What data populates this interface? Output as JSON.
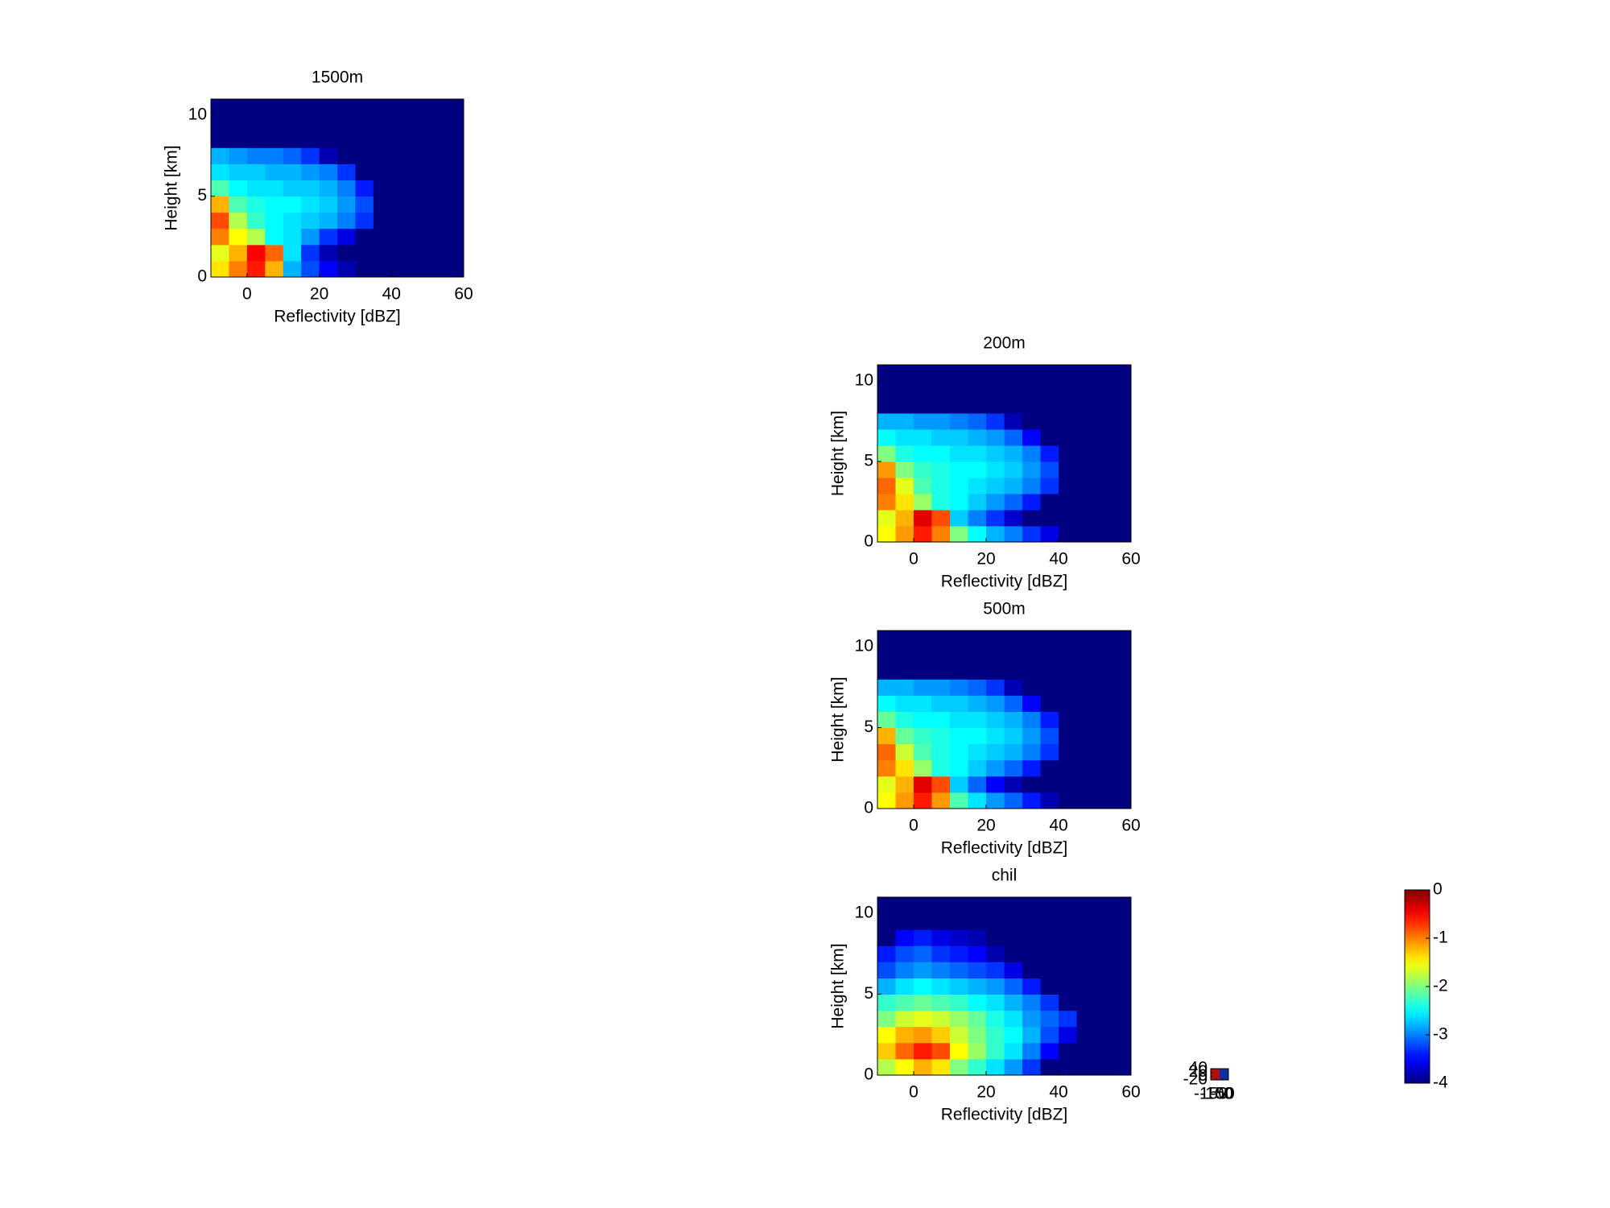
{
  "chart_data": [
    {
      "type": "heatmap",
      "title": "1500m",
      "xlabel": "Reflectivity [dBZ]",
      "ylabel": "Height [km]",
      "colormap": "jet",
      "clim": [
        -4,
        0
      ],
      "xlim": [
        -10,
        60
      ],
      "ylim": [
        0,
        11
      ],
      "xticks": [
        0,
        20,
        40,
        60
      ],
      "yticks": [
        0,
        5,
        10
      ],
      "xbins": [
        -10,
        -5,
        0,
        5,
        10,
        15,
        20,
        25,
        30,
        35,
        40,
        45,
        50,
        55,
        60
      ],
      "ybins": [
        0,
        1,
        2,
        3,
        4,
        5,
        6,
        7,
        8,
        9,
        10,
        11
      ],
      "values": [
        [
          -1.4,
          -1,
          -0.6,
          -1.2,
          -2.8,
          -3.2,
          -3.5,
          -3.8,
          -4,
          -4,
          -4,
          -4,
          -4,
          -4
        ],
        [
          -1.6,
          -1.2,
          -0.5,
          -0.9,
          -2.6,
          -3.3,
          -3.8,
          -4,
          -4,
          -4,
          -4,
          -4,
          -4,
          -4
        ],
        [
          -1,
          -1.5,
          -1.8,
          -2.5,
          -2.6,
          -2.9,
          -3.3,
          -3.6,
          -4,
          -4,
          -4,
          -4,
          -4,
          -4
        ],
        [
          -0.8,
          -1.8,
          -2.3,
          -2.5,
          -2.6,
          -2.7,
          -2.8,
          -3,
          -3.3,
          -4,
          -4,
          -4,
          -4,
          -4
        ],
        [
          -1.2,
          -2.2,
          -2.4,
          -2.5,
          -2.5,
          -2.6,
          -2.7,
          -2.9,
          -3.2,
          -4,
          -4,
          -4,
          -4,
          -4
        ],
        [
          -2.2,
          -2.5,
          -2.6,
          -2.6,
          -2.7,
          -2.7,
          -2.8,
          -3,
          -3.4,
          -4,
          -4,
          -4,
          -4,
          -4
        ],
        [
          -2.6,
          -2.7,
          -2.7,
          -2.8,
          -2.8,
          -2.9,
          -3,
          -3.3,
          -4,
          -4,
          -4,
          -4,
          -4,
          -4
        ],
        [
          -2.8,
          -2.9,
          -3,
          -3,
          -3.1,
          -3.3,
          -3.8,
          -4,
          -4,
          -4,
          -4,
          -4,
          -4,
          -4
        ],
        [
          -4,
          -4,
          -4,
          -4,
          -4,
          -4,
          -4,
          -4,
          -4,
          -4,
          -4,
          -4,
          -4,
          -4
        ],
        [
          -4,
          -4,
          -4,
          -4,
          -4,
          -4,
          -4,
          -4,
          -4,
          -4,
          -4,
          -4,
          -4,
          -4
        ],
        [
          -4,
          -4,
          -4,
          -4,
          -4,
          -4,
          -4,
          -4,
          -4,
          -4,
          -4,
          -4,
          -4,
          -4
        ]
      ]
    },
    {
      "type": "heatmap",
      "title": "200m",
      "xlabel": "Reflectivity [dBZ]",
      "ylabel": "Height [km]",
      "colormap": "jet",
      "clim": [
        -4,
        0
      ],
      "xlim": [
        -10,
        60
      ],
      "ylim": [
        0,
        11
      ],
      "xticks": [
        0,
        20,
        40,
        60
      ],
      "yticks": [
        0,
        5,
        10
      ],
      "xbins": [
        -10,
        -5,
        0,
        5,
        10,
        15,
        20,
        25,
        30,
        35,
        40,
        45,
        50,
        55,
        60
      ],
      "ybins": [
        0,
        1,
        2,
        3,
        4,
        5,
        6,
        7,
        8,
        9,
        10,
        11
      ],
      "values": [
        [
          -1.5,
          -1.1,
          -0.6,
          -1,
          -2,
          -2.5,
          -2.8,
          -3,
          -3.3,
          -3.6,
          -4,
          -4,
          -4,
          -4
        ],
        [
          -1.6,
          -1.2,
          -0.4,
          -0.8,
          -2.7,
          -3,
          -3.3,
          -3.7,
          -4,
          -4,
          -4,
          -4,
          -4,
          -4
        ],
        [
          -1,
          -1.4,
          -1.9,
          -2.4,
          -2.5,
          -2.7,
          -2.9,
          -3.1,
          -3.4,
          -4,
          -4,
          -4,
          -4,
          -4
        ],
        [
          -0.9,
          -1.6,
          -2.2,
          -2.4,
          -2.5,
          -2.6,
          -2.7,
          -2.8,
          -3,
          -3.3,
          -4,
          -4,
          -4,
          -4
        ],
        [
          -1.1,
          -2,
          -2.3,
          -2.4,
          -2.5,
          -2.5,
          -2.6,
          -2.7,
          -2.9,
          -3.2,
          -4,
          -4,
          -4,
          -4
        ],
        [
          -2,
          -2.4,
          -2.5,
          -2.5,
          -2.6,
          -2.6,
          -2.7,
          -2.8,
          -3,
          -3.4,
          -4,
          -4,
          -4,
          -4
        ],
        [
          -2.5,
          -2.6,
          -2.6,
          -2.7,
          -2.7,
          -2.8,
          -2.9,
          -3.1,
          -3.5,
          -4,
          -4,
          -4,
          -4,
          -4
        ],
        [
          -2.8,
          -2.8,
          -2.9,
          -2.9,
          -3,
          -3.1,
          -3.3,
          -3.8,
          -4,
          -4,
          -4,
          -4,
          -4,
          -4
        ],
        [
          -4,
          -4,
          -4,
          -4,
          -4,
          -4,
          -4,
          -4,
          -4,
          -4,
          -4,
          -4,
          -4,
          -4
        ],
        [
          -4,
          -4,
          -4,
          -4,
          -4,
          -4,
          -4,
          -4,
          -4,
          -4,
          -4,
          -4,
          -4,
          -4
        ],
        [
          -4,
          -4,
          -4,
          -4,
          -4,
          -4,
          -4,
          -4,
          -4,
          -4,
          -4,
          -4,
          -4,
          -4
        ]
      ]
    },
    {
      "type": "heatmap",
      "title": "500m",
      "xlabel": "Reflectivity [dBZ]",
      "ylabel": "Height [km]",
      "colormap": "jet",
      "clim": [
        -4,
        0
      ],
      "xlim": [
        -10,
        60
      ],
      "ylim": [
        0,
        11
      ],
      "xticks": [
        0,
        20,
        40,
        60
      ],
      "yticks": [
        0,
        5,
        10
      ],
      "xbins": [
        -10,
        -5,
        0,
        5,
        10,
        15,
        20,
        25,
        30,
        35,
        40,
        45,
        50,
        55,
        60
      ],
      "ybins": [
        0,
        1,
        2,
        3,
        4,
        5,
        6,
        7,
        8,
        9,
        10,
        11
      ],
      "values": [
        [
          -1.5,
          -1.1,
          -0.6,
          -1.1,
          -2.2,
          -2.6,
          -2.9,
          -3.1,
          -3.4,
          -3.8,
          -4,
          -4,
          -4,
          -4
        ],
        [
          -1.6,
          -1.2,
          -0.4,
          -0.8,
          -2.7,
          -3.1,
          -3.5,
          -3.8,
          -4,
          -4,
          -4,
          -4,
          -4,
          -4
        ],
        [
          -1,
          -1.4,
          -1.9,
          -2.4,
          -2.5,
          -2.7,
          -2.9,
          -3.1,
          -3.4,
          -4,
          -4,
          -4,
          -4,
          -4
        ],
        [
          -0.9,
          -1.7,
          -2.2,
          -2.4,
          -2.5,
          -2.6,
          -2.7,
          -2.8,
          -3,
          -3.3,
          -4,
          -4,
          -4,
          -4
        ],
        [
          -1.2,
          -2.1,
          -2.3,
          -2.4,
          -2.5,
          -2.5,
          -2.6,
          -2.7,
          -2.9,
          -3.2,
          -4,
          -4,
          -4,
          -4
        ],
        [
          -2.1,
          -2.4,
          -2.5,
          -2.5,
          -2.6,
          -2.6,
          -2.7,
          -2.8,
          -3,
          -3.4,
          -4,
          -4,
          -4,
          -4
        ],
        [
          -2.5,
          -2.6,
          -2.6,
          -2.7,
          -2.7,
          -2.8,
          -2.9,
          -3.1,
          -3.5,
          -4,
          -4,
          -4,
          -4,
          -4
        ],
        [
          -2.8,
          -2.8,
          -2.9,
          -2.9,
          -3,
          -3.1,
          -3.3,
          -3.8,
          -4,
          -4,
          -4,
          -4,
          -4,
          -4
        ],
        [
          -4,
          -4,
          -4,
          -4,
          -4,
          -4,
          -4,
          -4,
          -4,
          -4,
          -4,
          -4,
          -4,
          -4
        ],
        [
          -4,
          -4,
          -4,
          -4,
          -4,
          -4,
          -4,
          -4,
          -4,
          -4,
          -4,
          -4,
          -4,
          -4
        ],
        [
          -4,
          -4,
          -4,
          -4,
          -4,
          -4,
          -4,
          -4,
          -4,
          -4,
          -4,
          -4,
          -4,
          -4
        ]
      ]
    },
    {
      "type": "heatmap",
      "title": "chil",
      "xlabel": "Reflectivity [dBZ]",
      "ylabel": "Height [km]",
      "colormap": "jet",
      "clim": [
        -4,
        0
      ],
      "xlim": [
        -10,
        60
      ],
      "ylim": [
        0,
        11
      ],
      "xticks": [
        0,
        20,
        40,
        60
      ],
      "yticks": [
        0,
        5,
        10
      ],
      "xbins": [
        -10,
        -5,
        0,
        5,
        10,
        15,
        20,
        25,
        30,
        35,
        40,
        45,
        50,
        55,
        60
      ],
      "ybins": [
        0,
        1,
        2,
        3,
        4,
        5,
        6,
        7,
        8,
        9,
        10,
        11
      ],
      "values": [
        [
          -1.8,
          -1.5,
          -1.2,
          -1.4,
          -2,
          -2.3,
          -2.6,
          -2.9,
          -3.3,
          -4,
          -4,
          -4,
          -4,
          -4
        ],
        [
          -1.3,
          -0.9,
          -0.6,
          -0.8,
          -1.5,
          -1.9,
          -2.3,
          -2.6,
          -3,
          -3.5,
          -4,
          -4,
          -4,
          -4
        ],
        [
          -1.5,
          -1.2,
          -1.1,
          -1.3,
          -1.7,
          -2,
          -2.3,
          -2.5,
          -2.8,
          -3.2,
          -3.6,
          -4,
          -4,
          -4
        ],
        [
          -2,
          -1.7,
          -1.6,
          -1.7,
          -1.9,
          -2.1,
          -2.4,
          -2.6,
          -2.9,
          -3.1,
          -3.3,
          -4,
          -4,
          -4
        ],
        [
          -2.3,
          -2.2,
          -2.1,
          -2.2,
          -2.3,
          -2.5,
          -2.6,
          -2.8,
          -3,
          -3.3,
          -4,
          -4,
          -4,
          -4
        ],
        [
          -2.8,
          -2.6,
          -2.5,
          -2.6,
          -2.7,
          -2.8,
          -2.9,
          -3.1,
          -3.4,
          -4,
          -4,
          -4,
          -4,
          -4
        ],
        [
          -3.2,
          -3,
          -2.9,
          -3,
          -3.1,
          -3.2,
          -3.3,
          -3.6,
          -4,
          -4,
          -4,
          -4,
          -4,
          -4
        ],
        [
          -3.4,
          -3.2,
          -3.1,
          -3.3,
          -3.4,
          -3.5,
          -3.8,
          -4,
          -4,
          -4,
          -4,
          -4,
          -4,
          -4
        ],
        [
          -4,
          -3.5,
          -3.4,
          -3.6,
          -3.7,
          -3.8,
          -4,
          -4,
          -4,
          -4,
          -4,
          -4,
          -4,
          -4
        ],
        [
          -4,
          -4,
          -4,
          -4,
          -4,
          -4,
          -4,
          -4,
          -4,
          -4,
          -4,
          -4,
          -4,
          -4
        ],
        [
          -4,
          -4,
          -4,
          -4,
          -4,
          -4,
          -4,
          -4,
          -4,
          -4,
          -4,
          -4,
          -4,
          -4
        ]
      ]
    },
    {
      "type": "colorbar",
      "colormap": "jet",
      "ylim": [
        -4,
        0
      ],
      "yticks": [
        0,
        -1,
        -2,
        -3,
        -4
      ]
    },
    {
      "type": "mini",
      "xlim": [
        -150,
        0
      ],
      "ylim": [
        -20,
        40
      ],
      "xticks": [
        -150,
        -100,
        -50,
        0
      ],
      "yticks": [
        -20,
        0,
        20,
        40
      ]
    }
  ]
}
